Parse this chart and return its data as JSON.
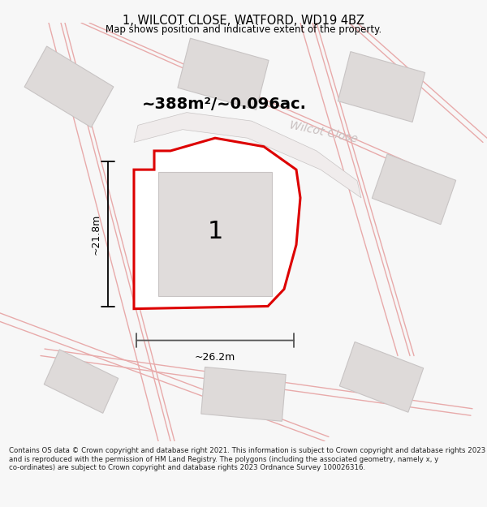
{
  "title": "1, WILCOT CLOSE, WATFORD, WD19 4BZ",
  "subtitle": "Map shows position and indicative extent of the property.",
  "area_text": "~388m²/~0.096ac.",
  "label_number": "1",
  "dim_height": "~21.8m",
  "dim_width": "~26.2m",
  "street_label": "Wilcot Close",
  "copyright_text": "Contains OS data © Crown copyright and database right 2021. This information is subject to Crown copyright and database rights 2023 and is reproduced with the permission of HM Land Registry. The polygons (including the associated geometry, namely x, y co-ordinates) are subject to Crown copyright and database rights 2023 Ordnance Survey 100026316.",
  "bg_color": "#f7f7f7",
  "map_bg": "#eeecec",
  "building_fill": "#dedad9",
  "building_outline": "#c8c4c4",
  "road_fill": "#f0ecec",
  "plot_fill": "#ffffff",
  "plot_outline": "#dd0000",
  "inner_fill": "#e0dcdb",
  "dim_color": "#333333",
  "title_color": "#000000",
  "street_color": "#c8bfbf",
  "road_line_color": "#e8aaaa"
}
